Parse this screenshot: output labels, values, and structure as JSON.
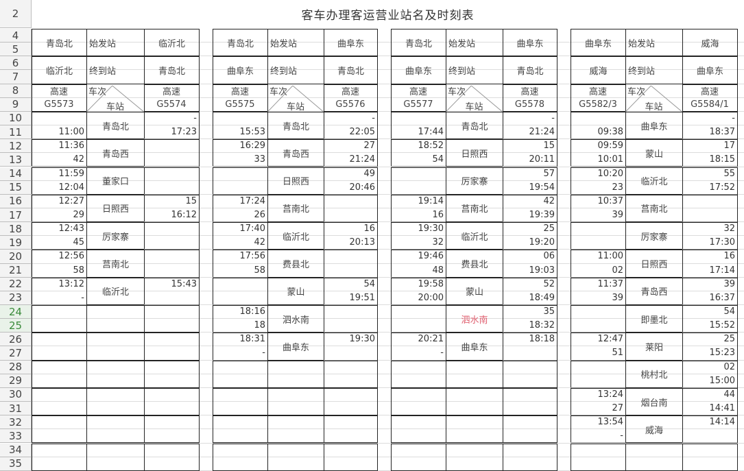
{
  "sheet": {
    "title": "客车办理客运营业站名及时刻表",
    "row_numbers": [
      "2",
      "4",
      "5",
      "6",
      "7",
      "8",
      "9",
      "10",
      "11",
      "12",
      "13",
      "14",
      "15",
      "16",
      "17",
      "18",
      "19",
      "20",
      "21",
      "22",
      "23",
      "24",
      "25",
      "26",
      "27",
      "28",
      "29",
      "30",
      "31",
      "32",
      "33",
      "34",
      "35"
    ],
    "selected_rows": [
      "24",
      "25"
    ],
    "labels": {
      "origin": "始发站",
      "terminal": "终到站",
      "train_no": "车次",
      "station": "车站",
      "speed": "高速"
    },
    "highlight_color": "#e06070"
  },
  "blocks": [
    {
      "left_origin": "青岛北",
      "right_origin": "临沂北",
      "left_terminal": "临沂北",
      "right_terminal": "青岛北",
      "left_train": "G5573",
      "right_train": "G5574",
      "stations": [
        {
          "name": "青岛北",
          "left": [
            "",
            "11:00"
          ],
          "right": [
            "-",
            "17:23"
          ]
        },
        {
          "name": "青岛西",
          "left": [
            "11:36",
            "42"
          ],
          "right": [
            "",
            ""
          ]
        },
        {
          "name": "董家口",
          "left": [
            "11:59",
            "12:04"
          ],
          "right": [
            "",
            ""
          ]
        },
        {
          "name": "日照西",
          "left": [
            "12:27",
            "29"
          ],
          "right": [
            "15",
            "16:12"
          ]
        },
        {
          "name": "厉家寨",
          "left": [
            "12:43",
            "45"
          ],
          "right": [
            "",
            ""
          ]
        },
        {
          "name": "莒南北",
          "left": [
            "12:56",
            "58"
          ],
          "right": [
            "",
            ""
          ]
        },
        {
          "name": "临沂北",
          "left": [
            "13:12",
            "-"
          ],
          "right": [
            "15:43",
            ""
          ]
        }
      ]
    },
    {
      "left_origin": "青岛北",
      "right_origin": "曲阜东",
      "left_terminal": "曲阜东",
      "right_terminal": "青岛北",
      "left_train": "G5575",
      "right_train": "G5576",
      "stations": [
        {
          "name": "青岛北",
          "left": [
            "",
            "15:53"
          ],
          "right": [
            "-",
            "22:05"
          ]
        },
        {
          "name": "青岛西",
          "left": [
            "16:29",
            "33"
          ],
          "right": [
            "27",
            "21:24"
          ]
        },
        {
          "name": "日照西",
          "left": [
            "",
            ""
          ],
          "right": [
            "49",
            "20:46"
          ]
        },
        {
          "name": "莒南北",
          "left": [
            "17:24",
            "26"
          ],
          "right": [
            "",
            ""
          ]
        },
        {
          "name": "临沂北",
          "left": [
            "17:40",
            "42"
          ],
          "right": [
            "16",
            "20:13"
          ]
        },
        {
          "name": "费县北",
          "left": [
            "17:56",
            "58"
          ],
          "right": [
            "",
            ""
          ]
        },
        {
          "name": "蒙山",
          "left": [
            "",
            ""
          ],
          "right": [
            "54",
            "19:51"
          ]
        },
        {
          "name": "泗水南",
          "left": [
            "18:16",
            "18"
          ],
          "right": [
            "",
            ""
          ]
        },
        {
          "name": "曲阜东",
          "left": [
            "18:31",
            "-"
          ],
          "right": [
            "19:30",
            ""
          ]
        }
      ]
    },
    {
      "left_origin": "青岛北",
      "right_origin": "曲阜东",
      "left_terminal": "曲阜东",
      "right_terminal": "青岛北",
      "left_train": "G5577",
      "right_train": "G5578",
      "stations": [
        {
          "name": "青岛北",
          "left": [
            "",
            "17:44"
          ],
          "right": [
            "-",
            "21:24"
          ]
        },
        {
          "name": "日照西",
          "left": [
            "18:52",
            "54"
          ],
          "right": [
            "15",
            "20:11"
          ]
        },
        {
          "name": "厉家寨",
          "left": [
            "",
            ""
          ],
          "right": [
            "57",
            "19:54"
          ]
        },
        {
          "name": "莒南北",
          "left": [
            "19:14",
            "16"
          ],
          "right": [
            "42",
            "19:39"
          ]
        },
        {
          "name": "临沂北",
          "left": [
            "19:30",
            "32"
          ],
          "right": [
            "25",
            "19:20"
          ]
        },
        {
          "name": "费县北",
          "left": [
            "19:46",
            "48"
          ],
          "right": [
            "06",
            "19:03"
          ]
        },
        {
          "name": "蒙山",
          "left": [
            "19:58",
            "20:00"
          ],
          "right": [
            "52",
            "18:49"
          ]
        },
        {
          "name": "泗水南",
          "left": [
            "",
            ""
          ],
          "right": [
            "35",
            "18:32"
          ],
          "highlight": true
        },
        {
          "name": "曲阜东",
          "left": [
            "20:21",
            "-"
          ],
          "right": [
            "18:18",
            ""
          ]
        }
      ]
    },
    {
      "left_origin": "曲阜东",
      "right_origin": "威海",
      "left_terminal": "威海",
      "right_terminal": "曲阜东",
      "left_train": "G5582/3",
      "right_train": "G5584/1",
      "stations": [
        {
          "name": "曲阜东",
          "left": [
            "",
            "09:38"
          ],
          "right": [
            "-",
            "18:37"
          ]
        },
        {
          "name": "蒙山",
          "left": [
            "09:59",
            "10:01"
          ],
          "right": [
            "17",
            "18:15"
          ]
        },
        {
          "name": "临沂北",
          "left": [
            "10:20",
            "23"
          ],
          "right": [
            "55",
            "17:52"
          ]
        },
        {
          "name": "莒南北",
          "left": [
            "10:37",
            "39"
          ],
          "right": [
            "",
            ""
          ]
        },
        {
          "name": "厉家寨",
          "left": [
            "",
            ""
          ],
          "right": [
            "32",
            "17:30"
          ]
        },
        {
          "name": "日照西",
          "left": [
            "11:00",
            "02"
          ],
          "right": [
            "16",
            "17:14"
          ]
        },
        {
          "name": "青岛西",
          "left": [
            "11:37",
            "39"
          ],
          "right": [
            "39",
            "16:37"
          ]
        },
        {
          "name": "即墨北",
          "left": [
            "",
            ""
          ],
          "right": [
            "54",
            "15:52"
          ]
        },
        {
          "name": "莱阳",
          "left": [
            "12:47",
            "51"
          ],
          "right": [
            "25",
            "15:23"
          ]
        },
        {
          "name": "桃村北",
          "left": [
            "",
            ""
          ],
          "right": [
            "02",
            "15:00"
          ]
        },
        {
          "name": "烟台南",
          "left": [
            "13:24",
            "27"
          ],
          "right": [
            "44",
            "14:41"
          ]
        },
        {
          "name": "威海",
          "left": [
            "13:54",
            "-"
          ],
          "right": [
            "14:14",
            ""
          ]
        }
      ]
    }
  ]
}
